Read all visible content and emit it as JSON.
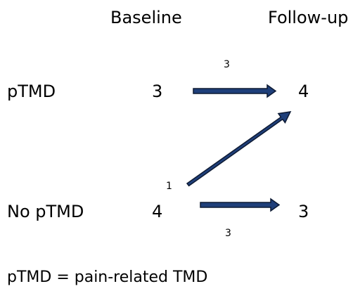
{
  "columns": {
    "baseline": "Baseline",
    "followup": "Follow-up"
  },
  "rows": {
    "ptmd": {
      "label": "pTMD",
      "baseline": "3",
      "followup": "4"
    },
    "no_ptmd": {
      "label": "No pTMD",
      "baseline": "4",
      "followup": "3"
    }
  },
  "transitions": {
    "ptmd_to_ptmd": "3",
    "no_ptmd_to_ptmd": "1",
    "no_ptmd_to_no_ptmd": "3"
  },
  "footnote": "pTMD = pain-related TMD",
  "colors": {
    "arrow_fill": "#1f3f7a",
    "arrow_outline": "#0d1a33"
  }
}
